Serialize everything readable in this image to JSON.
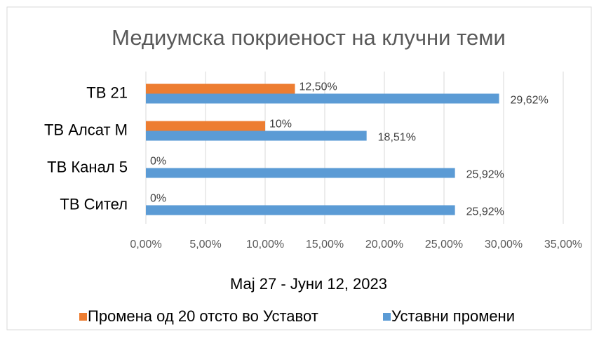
{
  "chart_data": {
    "type": "bar",
    "orientation": "horizontal",
    "title": "Медиумска покриеност на клучни теми",
    "x_label": "Мај 27 - Јуни 12, 2023",
    "categories": [
      "ТВ 21",
      "ТВ Алсат М",
      "ТВ Канал 5",
      "ТВ Сител"
    ],
    "series": [
      {
        "name": "Промена од 20 отсто во Уставот",
        "color": "#ed7d31",
        "values": [
          12.5,
          10,
          0,
          0
        ],
        "value_labels": [
          "12,50%",
          "10%",
          "0%",
          "0%"
        ]
      },
      {
        "name": "Уставни промени",
        "color": "#5b9bd5",
        "values": [
          29.62,
          18.51,
          25.92,
          25.92
        ],
        "value_labels": [
          "29,62%",
          "18,51%",
          "25,92%",
          "25,92%"
        ]
      }
    ],
    "xlim": [
      0,
      35
    ],
    "xticks": [
      {
        "value": 0,
        "label": "0,00%"
      },
      {
        "value": 5,
        "label": "5,00%"
      },
      {
        "value": 10,
        "label": "10,00%"
      },
      {
        "value": 15,
        "label": "15,00%"
      },
      {
        "value": 20,
        "label": "20,00%"
      },
      {
        "value": 25,
        "label": "25,00%"
      },
      {
        "value": 30,
        "label": "30,00%"
      },
      {
        "value": 35,
        "label": "35,00%"
      }
    ],
    "grid": true,
    "legend": "bottom"
  }
}
